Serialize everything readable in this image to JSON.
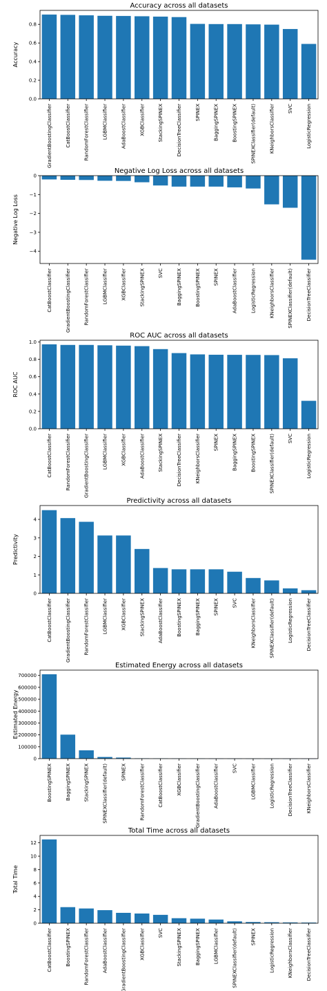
{
  "charts": [
    {
      "type": "bar",
      "title": "Accuracy across all datasets",
      "ylabel": "Accuracy",
      "ylim": [
        0,
        0.95
      ],
      "yticks": [
        0.0,
        0.2,
        0.4,
        0.6,
        0.8
      ],
      "ytick_labels": [
        "0.0",
        "0.2",
        "0.4",
        "0.6",
        "0.8"
      ],
      "categories": [
        "GradientBoostingClassifier",
        "CatBoostClassifier",
        "RandomForestClassifier",
        "LGBMClassifier",
        "AdaBoostClassifier",
        "XGBClassifier",
        "StackingSPINEX",
        "DecisionTreeClassifier",
        "SPINEX",
        "BaggingSPINEX",
        "BoostingSPINEX",
        "SPINEXClassifier(default)",
        "KNeighborsClassifier",
        "SVC",
        "LogisticRegression"
      ],
      "values": [
        0.905,
        0.902,
        0.897,
        0.892,
        0.89,
        0.887,
        0.883,
        0.878,
        0.805,
        0.803,
        0.803,
        0.8,
        0.797,
        0.75,
        0.59
      ],
      "color": "#1f77b4"
    },
    {
      "type": "bar",
      "title": "Negative Log Loss across all datasets",
      "ylabel": "Negative Log Loss",
      "ylim": [
        -4.65,
        0
      ],
      "yticks": [
        0,
        -1,
        -2,
        -3,
        -4
      ],
      "ytick_labels": [
        "0",
        "−1",
        "−2",
        "−3",
        "−4"
      ],
      "categories": [
        "CatBoostClassifier",
        "GradientBoostingClassifier",
        "RandomForestClassifier",
        "LGBMClassifier",
        "XGBClassifier",
        "StackingSPINEX",
        "SVC",
        "BaggingSPINEX",
        "BoostingSPINEX",
        "SPINEX",
        "AdaBoostClassifier",
        "LogisticRegression",
        "KNeighborsClassifier",
        "SPINEXClassifier(default)",
        "DecisionTreeClassifier"
      ],
      "values": [
        -0.2,
        -0.22,
        -0.23,
        -0.27,
        -0.28,
        -0.35,
        -0.52,
        -0.58,
        -0.58,
        -0.58,
        -0.62,
        -0.68,
        -1.52,
        -1.7,
        -4.45
      ],
      "color": "#1f77b4"
    },
    {
      "type": "bar",
      "title": "ROC AUC across all datasets",
      "ylabel": "ROC AUC",
      "ylim": [
        0,
        1.02
      ],
      "yticks": [
        0.0,
        0.2,
        0.4,
        0.6,
        0.8,
        1.0
      ],
      "ytick_labels": [
        "0.0",
        "0.2",
        "0.4",
        "0.6",
        "0.8",
        "1.0"
      ],
      "categories": [
        "CatBoostClassifier",
        "RandomForestClassifier",
        "GradientBoostingClassifier",
        "LGBMClassifier",
        "XGBClassifier",
        "AdaBoostClassifier",
        "StackingSPINEX",
        "DecisionTreeClassifier",
        "KNeighborsClassifier",
        "SPINEX",
        "BaggingSPINEX",
        "BoostingSPINEX",
        "SPINEXClassifier(default)",
        "SVC",
        "LogisticRegression"
      ],
      "values": [
        0.973,
        0.966,
        0.966,
        0.962,
        0.958,
        0.952,
        0.918,
        0.872,
        0.857,
        0.853,
        0.852,
        0.851,
        0.849,
        0.812,
        0.322
      ],
      "color": "#1f77b4"
    },
    {
      "type": "bar",
      "title": "Predictivity across all datasets",
      "ylabel": "Predictivity",
      "ylim": [
        0,
        4.75
      ],
      "yticks": [
        0,
        1,
        2,
        3,
        4
      ],
      "ytick_labels": [
        "0",
        "1",
        "2",
        "3",
        "4"
      ],
      "categories": [
        "CatBoostClassifier",
        "GradientBoostingClassifier",
        "RandomForestClassifier",
        "LGBMClassifier",
        "XGBClassifier",
        "StackingSPINEX",
        "AdaBoostClassifier",
        "BoostingSPINEX",
        "BaggingSPINEX",
        "SPINEX",
        "SVC",
        "KNeighborsClassifier",
        "SPINEXClassifier(default)",
        "LogisticRegression",
        "DecisionTreeClassifier"
      ],
      "values": [
        4.5,
        4.07,
        3.87,
        3.13,
        3.13,
        2.4,
        1.37,
        1.3,
        1.3,
        1.3,
        1.17,
        0.83,
        0.7,
        0.27,
        0.17
      ],
      "color": "#1f77b4"
    },
    {
      "type": "bar",
      "title": "Estimated Energy across all datasets",
      "ylabel": "Estimated Energy",
      "ylim": [
        0,
        745000
      ],
      "yticks": [
        0,
        100000,
        200000,
        300000,
        400000,
        500000,
        600000,
        700000
      ],
      "ytick_labels": [
        "0",
        "100000",
        "200000",
        "300000",
        "400000",
        "500000",
        "600000",
        "700000"
      ],
      "categories": [
        "BoostingSPINEX",
        "BaggingSPINEX",
        "StackingSPINEX",
        "SPINEXClassifier(default)",
        "SPINEX",
        "RandomForestClassifier",
        "CatBoostClassifier",
        "XGBClassifier",
        "GradientBoostingClassifier",
        "AdaBoostClassifier",
        "SVC",
        "LGBMClassifier",
        "LogisticRegression",
        "DecisionTreeClassifier",
        "KNeighborsClassifier"
      ],
      "values": [
        710000,
        202000,
        70000,
        14000,
        9000,
        3000,
        2500,
        1500,
        1200,
        900,
        600,
        400,
        200,
        150,
        100
      ],
      "color": "#1f77b4"
    },
    {
      "type": "bar",
      "title": "Total Time across all datasets",
      "ylabel": "Total Time",
      "ylim": [
        0,
        13.1
      ],
      "yticks": [
        0,
        2,
        4,
        6,
        8,
        10,
        12
      ],
      "ytick_labels": [
        "0",
        "2",
        "4",
        "6",
        "8",
        "10",
        "12"
      ],
      "categories": [
        "CatBoostClassifier",
        "BoostingSPINEX",
        "RandomForestClassifier",
        "AdaBoostClassifier",
        "GradientBoostingClassifier",
        "XGBClassifier",
        "SVC",
        "StackingSPINEX",
        "BaggingSPINEX",
        "LGBMClassifier",
        "SPINEXClassifier(default)",
        "SPINEX",
        "LogisticRegression",
        "KNeighborsClassifier",
        "DecisionTreeClassifier"
      ],
      "values": [
        12.5,
        2.4,
        2.2,
        1.95,
        1.55,
        1.45,
        1.25,
        0.75,
        0.68,
        0.55,
        0.28,
        0.18,
        0.15,
        0.12,
        0.1
      ],
      "color": "#1f77b4"
    }
  ]
}
